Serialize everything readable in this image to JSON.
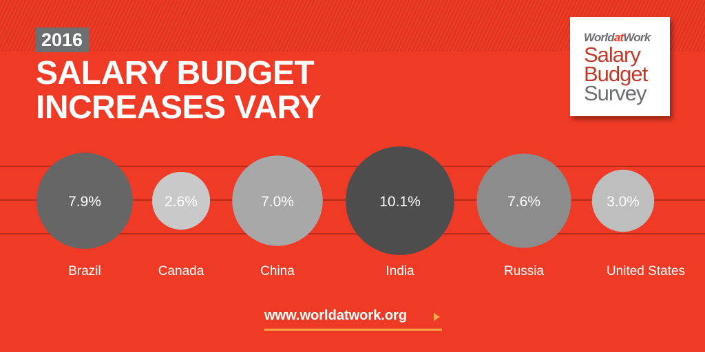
{
  "header": {
    "year": "2016",
    "title_line1": "SALARY BUDGET",
    "title_line2": "INCREASES VARY"
  },
  "logo": {
    "brand_pre": "World",
    "brand_at": "at",
    "brand_post": "Work",
    "line1": "Salary",
    "line2": "Budget",
    "line3": "Survey"
  },
  "footer": {
    "url": "www.worldatwork.org"
  },
  "colors": {
    "background": "#ef3b26",
    "accent": "#f5a54a",
    "gridline": "#b52a1a"
  },
  "chart_data": {
    "type": "bubble",
    "title": "SALARY BUDGET INCREASES VARY",
    "categories": [
      "Brazil",
      "Canada",
      "China",
      "India",
      "Russia",
      "United States"
    ],
    "values": [
      7.9,
      2.6,
      7.0,
      10.1,
      7.6,
      3.0
    ],
    "labels": [
      "7.9%",
      "2.6%",
      "7.0%",
      "10.1%",
      "7.6%",
      "3.0%"
    ],
    "bubble_colors": [
      "#666667",
      "#c9c9c9",
      "#a8a8a8",
      "#4d4d4e",
      "#8c8c8c",
      "#bebebe"
    ]
  }
}
